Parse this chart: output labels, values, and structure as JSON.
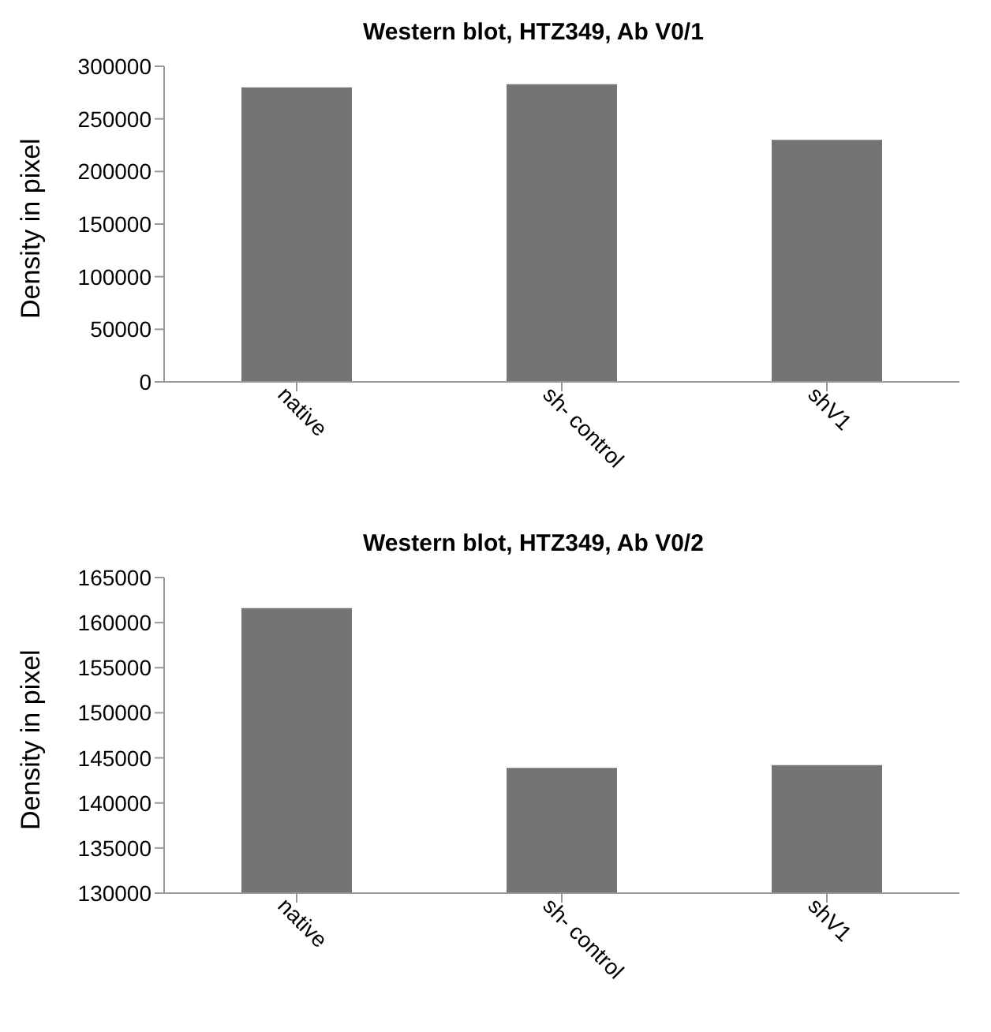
{
  "chart_data": [
    {
      "type": "bar",
      "title": "Western blot, HTZ349, Ab V0/1",
      "ylabel": "Density in pixel",
      "categories": [
        "native",
        "sh- control",
        "shV1"
      ],
      "values": [
        280000,
        283000,
        230000
      ],
      "color": "#747474",
      "ylim": [
        0,
        300000
      ],
      "yticks": [
        0,
        50000,
        100000,
        150000,
        200000,
        250000,
        300000
      ],
      "grid": false,
      "legend": false
    },
    {
      "type": "bar",
      "title": "Western blot, HTZ349, Ab V0/2",
      "ylabel": "Density in pixel",
      "categories": [
        "native",
        "sh- control",
        "shV1"
      ],
      "values": [
        161600,
        143900,
        144200
      ],
      "color": "#747474",
      "ylim": [
        130000,
        165000
      ],
      "yticks": [
        130000,
        135000,
        140000,
        145000,
        150000,
        155000,
        160000,
        165000
      ],
      "grid": false,
      "legend": false
    }
  ]
}
